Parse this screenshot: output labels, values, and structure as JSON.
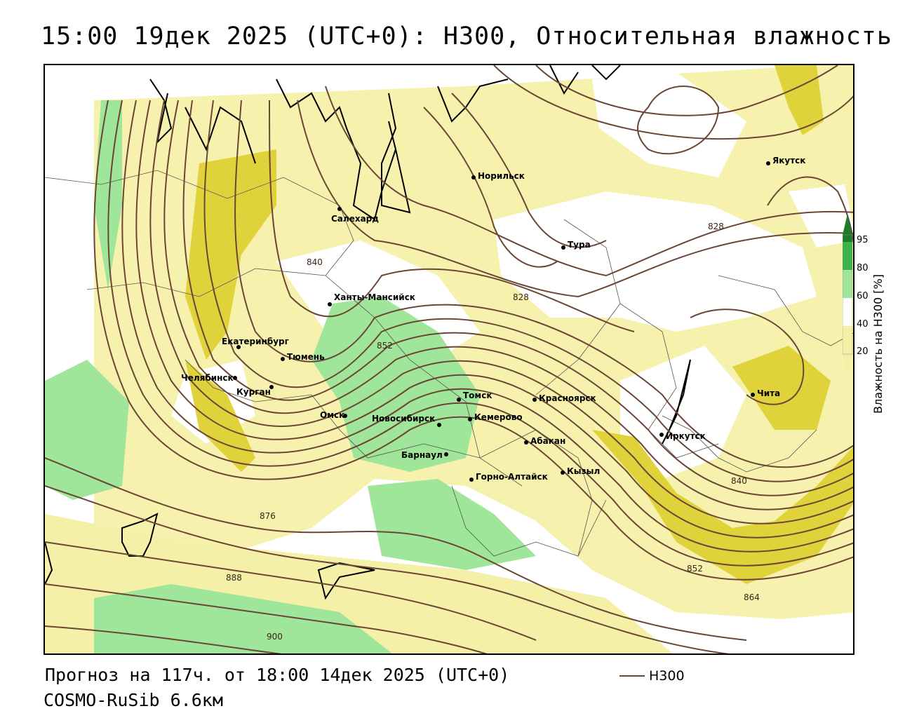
{
  "title": "15:00 19дек 2025 (UTC+0): H300, Относительная влажность",
  "footer": {
    "forecast": "Прогноз на 117ч. от 18:00 14дек 2025 (UTC+0)",
    "model": "COSMO-RuSib 6.6км"
  },
  "legend": {
    "series_label": "H300",
    "line_color": "#6b4535"
  },
  "colorbar": {
    "title": "Влажность на H300 [%]",
    "ticks": [
      "95",
      "80",
      "60",
      "40",
      "20"
    ],
    "colors": {
      "c95": "#1f7a2a",
      "c80": "#3cb44a",
      "c60": "#9fe59a",
      "c40": "#ffffff",
      "c20": "#f5f0a8",
      "ccore": "#e0d23a"
    }
  },
  "cities": [
    {
      "name": "Якутск"
    },
    {
      "name": "Норильск"
    },
    {
      "name": "Салехард"
    },
    {
      "name": "Тура"
    },
    {
      "name": "Ханты-Мансийск"
    },
    {
      "name": "Екатеринбург"
    },
    {
      "name": "Тюмень"
    },
    {
      "name": "Челябинск"
    },
    {
      "name": "Курган"
    },
    {
      "name": "Омск"
    },
    {
      "name": "Новосибирск"
    },
    {
      "name": "Томск"
    },
    {
      "name": "Кемерово"
    },
    {
      "name": "Красноярск"
    },
    {
      "name": "Абакан"
    },
    {
      "name": "Барнаул"
    },
    {
      "name": "Горно-Алтайск"
    },
    {
      "name": "Кызыл"
    },
    {
      "name": "Иркутск"
    },
    {
      "name": "Чита"
    }
  ],
  "contour_labels": [
    "840",
    "828",
    "828",
    "852",
    "876",
    "888",
    "900",
    "840",
    "852",
    "864"
  ]
}
